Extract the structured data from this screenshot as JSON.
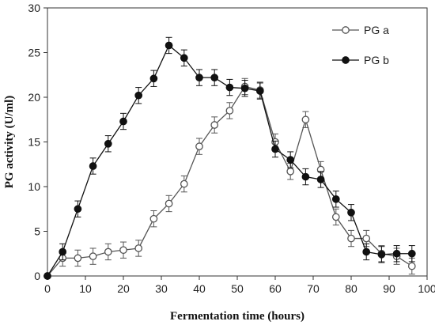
{
  "chart_data": {
    "type": "line",
    "title": "",
    "xlabel": "Fermentation time (hours)",
    "ylabel": "PG activity (U/ml)",
    "xlim": [
      0,
      100
    ],
    "ylim": [
      0,
      30
    ],
    "xticks": [
      0,
      10,
      20,
      30,
      40,
      50,
      60,
      70,
      80,
      90,
      100
    ],
    "yticks": [
      0,
      5,
      10,
      15,
      20,
      25,
      30
    ],
    "grid": false,
    "legend_position": "top-right",
    "series": [
      {
        "name": "PG a",
        "marker": "open-circle",
        "color": "#555555",
        "x": [
          0,
          4,
          8,
          12,
          16,
          20,
          24,
          28,
          32,
          36,
          40,
          44,
          48,
          52,
          56,
          60,
          64,
          68,
          72,
          76,
          80,
          84,
          88,
          92,
          96
        ],
        "y": [
          0,
          2.0,
          2.0,
          2.2,
          2.7,
          2.9,
          3.1,
          6.4,
          8.1,
          10.3,
          14.5,
          16.9,
          18.5,
          21.2,
          20.8,
          15.0,
          11.7,
          17.5,
          11.9,
          6.6,
          4.2,
          4.2,
          2.5,
          2.2,
          1.1
        ],
        "error": [
          0,
          0.9,
          0.9,
          0.9,
          0.9,
          0.9,
          0.9,
          0.9,
          0.9,
          0.9,
          0.9,
          0.9,
          0.9,
          0.9,
          0.9,
          0.9,
          0.9,
          0.9,
          0.9,
          0.9,
          0.9,
          0.9,
          0.9,
          0.9,
          0.9
        ]
      },
      {
        "name": "PG b",
        "marker": "filled-circle",
        "color": "#111111",
        "x": [
          0,
          4,
          8,
          12,
          16,
          20,
          24,
          28,
          32,
          36,
          40,
          44,
          48,
          52,
          56,
          60,
          64,
          68,
          72,
          76,
          80,
          84,
          88,
          92,
          96
        ],
        "y": [
          0,
          2.7,
          7.5,
          12.3,
          14.8,
          17.3,
          20.2,
          22.1,
          25.8,
          24.4,
          22.2,
          22.2,
          21.1,
          21.0,
          20.7,
          14.2,
          13.0,
          11.1,
          10.8,
          8.6,
          7.1,
          2.7,
          2.4,
          2.5,
          2.5
        ],
        "error": [
          0,
          0.9,
          0.9,
          0.9,
          0.9,
          0.9,
          0.9,
          0.9,
          0.9,
          0.9,
          0.9,
          0.9,
          0.9,
          0.9,
          0.9,
          0.9,
          0.9,
          0.9,
          0.9,
          0.9,
          0.9,
          0.9,
          0.9,
          0.9,
          0.9
        ]
      }
    ]
  }
}
